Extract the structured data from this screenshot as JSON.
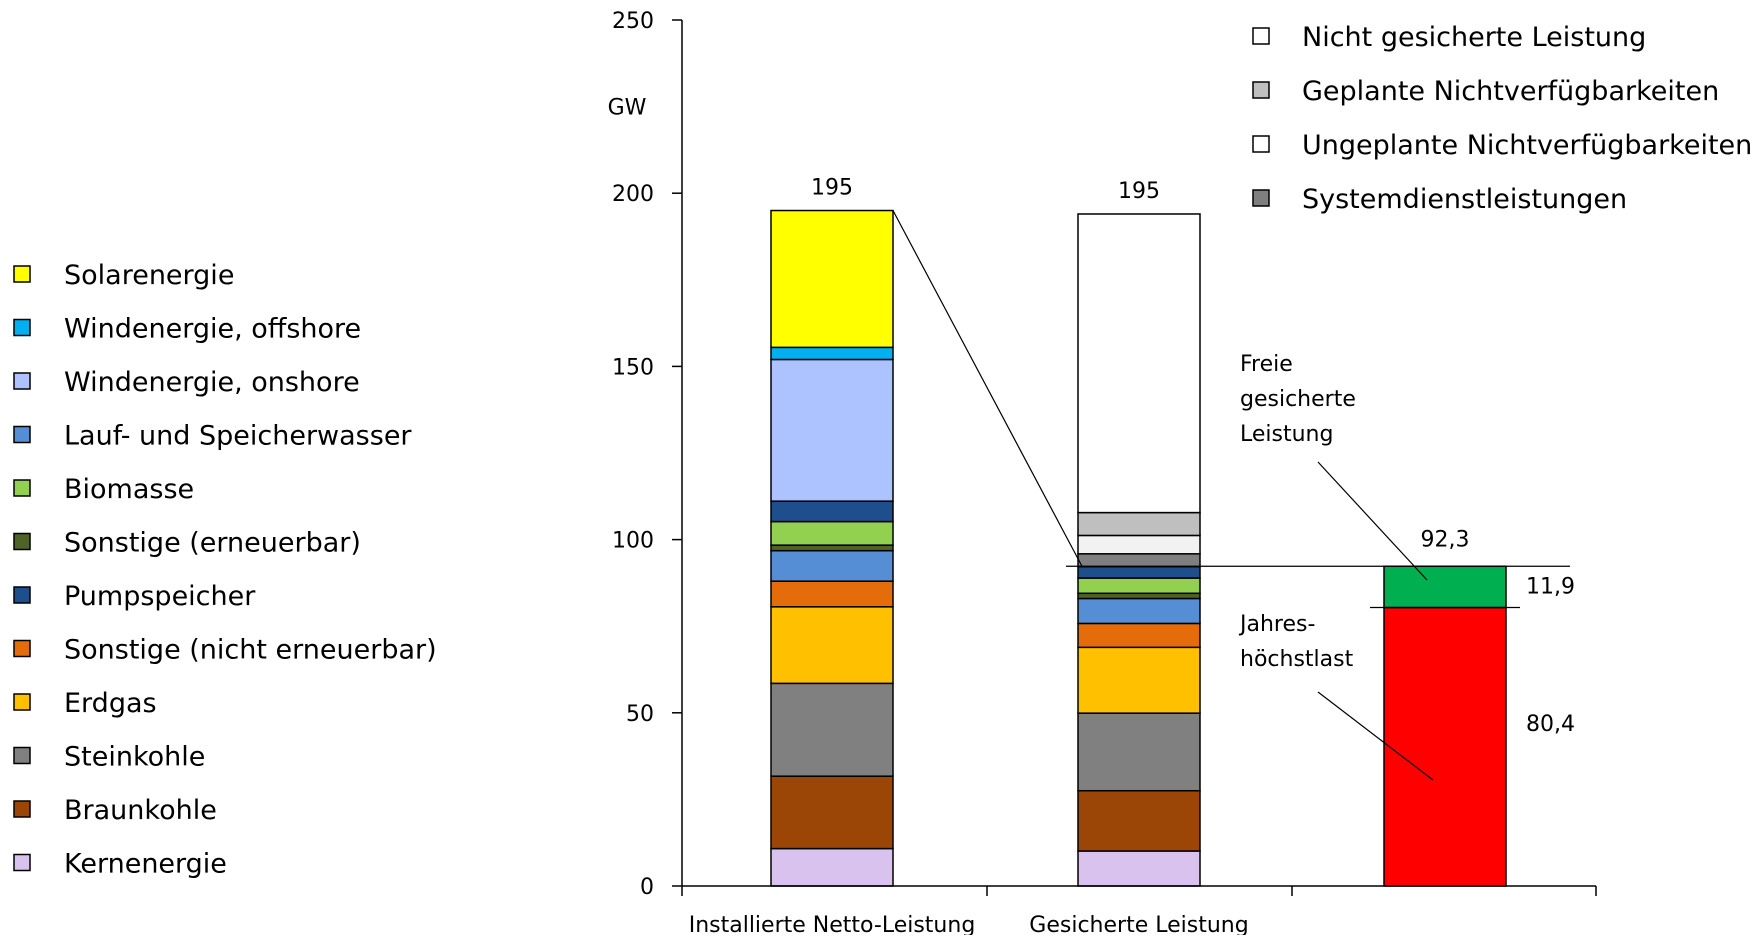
{
  "chart_data": {
    "type": "bar",
    "stacked": true,
    "unit": "GW",
    "ylim": [
      0,
      250
    ],
    "y_ticks": [
      0,
      50,
      100,
      150,
      200,
      250
    ],
    "categories": [
      "Installierte Netto-Leistung",
      "Gesicherte Leistung",
      ""
    ],
    "series": [
      {
        "name": "Kernenergie",
        "color": "#d9c3ee",
        "values": [
          10.8,
          10.1,
          null
        ]
      },
      {
        "name": "Braunkohle",
        "color": "#9b4507",
        "values": [
          20.9,
          17.4,
          null
        ]
      },
      {
        "name": "Steinkohle",
        "color": "#808080",
        "values": [
          26.8,
          22.4,
          null
        ]
      },
      {
        "name": "Erdgas",
        "color": "#ffc000",
        "values": [
          22.1,
          19.0,
          null
        ]
      },
      {
        "name": "Sonstige (nicht erneuerbar)",
        "color": "#e46c0a",
        "values": [
          7.4,
          6.9,
          null
        ]
      },
      {
        "name": "Lauf- und Speicherwasser",
        "color": "#558ed5",
        "values": [
          8.8,
          7.2,
          null
        ]
      },
      {
        "name": "Sonstige (erneuerbar)",
        "color": "#4f6228",
        "values": [
          1.6,
          1.5,
          null
        ]
      },
      {
        "name": "Biomasse",
        "color": "#92d050",
        "values": [
          6.8,
          4.4,
          null
        ]
      },
      {
        "name": "Pumpspeicher",
        "color": "#1f4e8c",
        "values": [
          5.9,
          3.3,
          null
        ]
      },
      {
        "name": "Windenergie, onshore",
        "color": "#adc3ff",
        "values": [
          40.9,
          0,
          null
        ]
      },
      {
        "name": "Windenergie, offshore",
        "color": "#00b0f0",
        "values": [
          3.5,
          0,
          null
        ]
      },
      {
        "name": "Solarenergie",
        "color": "#ffff00",
        "values": [
          39.5,
          0,
          null
        ]
      },
      {
        "name": "Systemdienstleistungen",
        "color": "#7f7f7f",
        "values": [
          null,
          3.7,
          null
        ]
      },
      {
        "name": "Ungeplante Nichtverfügbarkeiten",
        "color": "#f2f2f2",
        "values": [
          null,
          5.3,
          null
        ]
      },
      {
        "name": "Geplante Nichtverfügbarkeiten",
        "color": "#bfbfbf",
        "values": [
          null,
          6.6,
          null
        ]
      },
      {
        "name": "Nicht gesicherte Leistung",
        "color": "#ffffff",
        "values": [
          null,
          86.2,
          null
        ]
      },
      {
        "name": "Jahreshöchstlast",
        "color": "#ff0000",
        "values": [
          null,
          null,
          80.4
        ]
      },
      {
        "name": "Freie gesicherte Leistung",
        "color": "#00b050",
        "values": [
          null,
          null,
          11.9
        ]
      }
    ],
    "legend_left": [
      {
        "label": "Solarenergie",
        "color": "#ffff00"
      },
      {
        "label": "Windenergie, offshore",
        "color": "#00b0f0"
      },
      {
        "label": "Windenergie, onshore",
        "color": "#adc3ff"
      },
      {
        "label": "Lauf- und Speicherwasser",
        "color": "#558ed5"
      },
      {
        "label": "Biomasse",
        "color": "#92d050"
      },
      {
        "label": "Sonstige (erneuerbar)",
        "color": "#4f6228"
      },
      {
        "label": "Pumpspeicher",
        "color": "#1f4e8c"
      },
      {
        "label": "Sonstige (nicht erneuerbar)",
        "color": "#e46c0a"
      },
      {
        "label": "Erdgas",
        "color": "#ffc000"
      },
      {
        "label": "Steinkohle",
        "color": "#808080"
      },
      {
        "label": "Braunkohle",
        "color": "#9b4507"
      },
      {
        "label": "Kernenergie",
        "color": "#d9c3ee"
      }
    ],
    "legend_right": [
      {
        "label": "Nicht gesicherte Leistung",
        "color": "#ffffff"
      },
      {
        "label": "Geplante Nichtverfügbarkeiten",
        "color": "#bfbfbf"
      },
      {
        "label": "Ungeplante Nichtverfügbarkeiten",
        "color": "#ffffff"
      },
      {
        "label": "Systemdienstleistungen",
        "color": "#7f7f7f"
      }
    ],
    "totals": [
      "195",
      "195"
    ],
    "secured_level": 92.3,
    "peak_load_level": 80.4,
    "data_labels": {
      "total_secured_free": "92,3",
      "free_secured": "11,9",
      "peak_load": "80,4"
    },
    "annotations": {
      "free_secured": [
        "Freie",
        "gesicherte",
        "Leistung"
      ],
      "peak_load": [
        "Jahres-",
        "höchstlast"
      ]
    },
    "grid": false,
    "legend_position": "left and top-right"
  }
}
